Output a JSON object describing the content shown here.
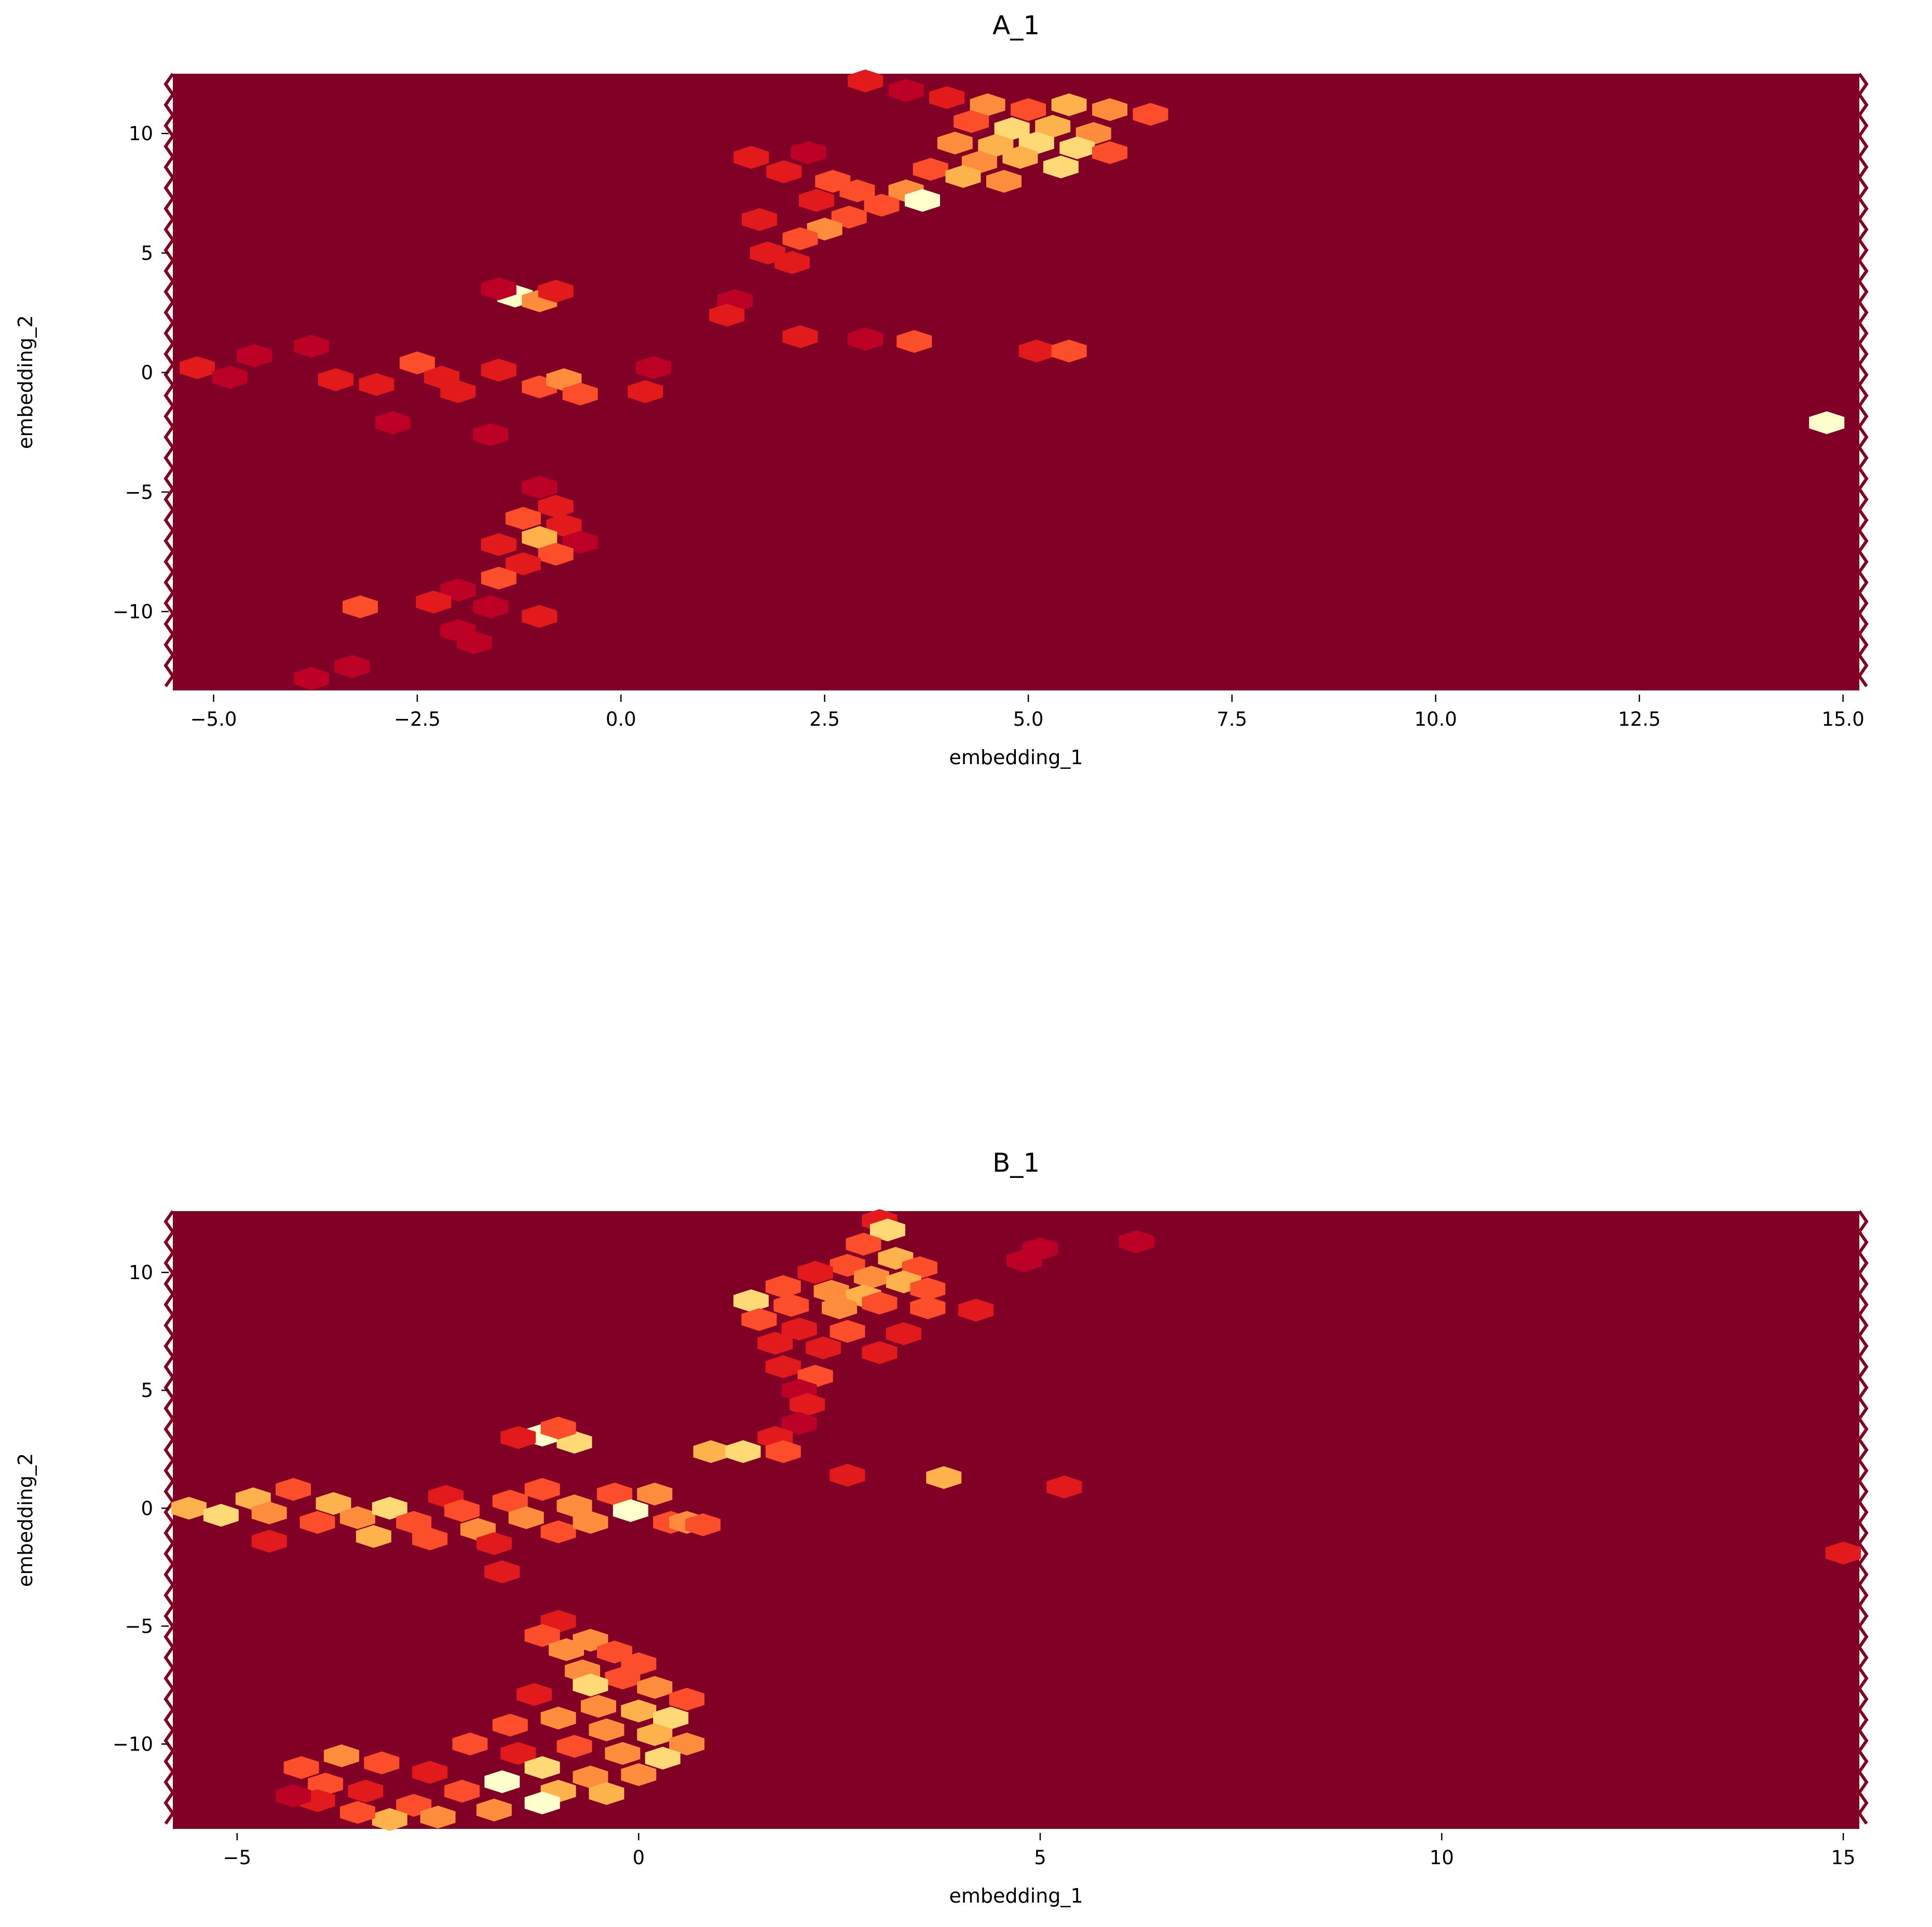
{
  "colors": {
    "background": "#800026",
    "colormap": [
      "#800026",
      "#bd0026",
      "#e31a1c",
      "#fc4e2a",
      "#fd8d3c",
      "#feb24c",
      "#fed976",
      "#ffffcc"
    ]
  },
  "chart_data": [
    {
      "type": "heatmap",
      "subtype": "hexbin",
      "title": "A_1",
      "xlabel": "embedding_1",
      "ylabel": "embedding_2",
      "xlim": [
        -5.5,
        15.2
      ],
      "ylim": [
        -13.3,
        12.5
      ],
      "xticks": [
        -5.0,
        -2.5,
        0.0,
        2.5,
        5.0,
        7.5,
        10.0,
        12.5,
        15.0
      ],
      "xtick_labels": [
        "−5.0",
        "−2.5",
        "0.0",
        "2.5",
        "5.0",
        "7.5",
        "10.0",
        "12.5",
        "15.0"
      ],
      "yticks": [
        10,
        5,
        0,
        -5,
        -10
      ],
      "ytick_labels": [
        "10",
        "5",
        "0",
        "−5",
        "−10"
      ],
      "grid": false,
      "bins": [
        {
          "x": 3.0,
          "y": 12.2,
          "v": 2
        },
        {
          "x": 3.5,
          "y": 11.8,
          "v": 1
        },
        {
          "x": 4.0,
          "y": 11.5,
          "v": 2
        },
        {
          "x": 4.5,
          "y": 11.2,
          "v": 4
        },
        {
          "x": 5.0,
          "y": 11.0,
          "v": 3
        },
        {
          "x": 5.5,
          "y": 11.2,
          "v": 5
        },
        {
          "x": 6.0,
          "y": 11.0,
          "v": 4
        },
        {
          "x": 6.5,
          "y": 10.8,
          "v": 3
        },
        {
          "x": 4.3,
          "y": 10.5,
          "v": 3
        },
        {
          "x": 4.8,
          "y": 10.2,
          "v": 6
        },
        {
          "x": 5.3,
          "y": 10.3,
          "v": 5
        },
        {
          "x": 5.8,
          "y": 10.0,
          "v": 4
        },
        {
          "x": 4.1,
          "y": 9.6,
          "v": 4
        },
        {
          "x": 4.6,
          "y": 9.5,
          "v": 5
        },
        {
          "x": 5.1,
          "y": 9.6,
          "v": 6
        },
        {
          "x": 5.6,
          "y": 9.4,
          "v": 6
        },
        {
          "x": 6.0,
          "y": 9.2,
          "v": 3
        },
        {
          "x": 4.4,
          "y": 8.8,
          "v": 4
        },
        {
          "x": 4.9,
          "y": 9.0,
          "v": 5
        },
        {
          "x": 5.4,
          "y": 8.6,
          "v": 6
        },
        {
          "x": 3.8,
          "y": 8.5,
          "v": 3
        },
        {
          "x": 4.2,
          "y": 8.2,
          "v": 5
        },
        {
          "x": 4.7,
          "y": 8.0,
          "v": 4
        },
        {
          "x": 3.5,
          "y": 7.6,
          "v": 4
        },
        {
          "x": 3.7,
          "y": 7.2,
          "v": 7
        },
        {
          "x": 3.2,
          "y": 7.0,
          "v": 3
        },
        {
          "x": 2.8,
          "y": 6.5,
          "v": 3
        },
        {
          "x": 2.5,
          "y": 6.0,
          "v": 4
        },
        {
          "x": 2.2,
          "y": 5.6,
          "v": 3
        },
        {
          "x": 1.8,
          "y": 5.0,
          "v": 2
        },
        {
          "x": 2.1,
          "y": 4.6,
          "v": 2
        },
        {
          "x": 1.7,
          "y": 6.4,
          "v": 2
        },
        {
          "x": 2.6,
          "y": 8.0,
          "v": 3
        },
        {
          "x": 2.0,
          "y": 8.4,
          "v": 2
        },
        {
          "x": 1.6,
          "y": 9.0,
          "v": 2
        },
        {
          "x": 2.9,
          "y": 7.6,
          "v": 3
        },
        {
          "x": 2.4,
          "y": 7.2,
          "v": 2
        },
        {
          "x": 2.3,
          "y": 9.2,
          "v": 1
        },
        {
          "x": 1.4,
          "y": 3.0,
          "v": 1
        },
        {
          "x": 1.3,
          "y": 2.4,
          "v": 2
        },
        {
          "x": 2.2,
          "y": 1.5,
          "v": 2
        },
        {
          "x": 3.0,
          "y": 1.4,
          "v": 1
        },
        {
          "x": 3.6,
          "y": 1.3,
          "v": 3
        },
        {
          "x": 5.1,
          "y": 0.9,
          "v": 2
        },
        {
          "x": 5.5,
          "y": 0.9,
          "v": 3
        },
        {
          "x": -1.3,
          "y": 3.2,
          "v": 7
        },
        {
          "x": -1.0,
          "y": 3.0,
          "v": 4
        },
        {
          "x": -0.8,
          "y": 3.4,
          "v": 2
        },
        {
          "x": -1.5,
          "y": 3.5,
          "v": 1
        },
        {
          "x": -4.5,
          "y": 0.7,
          "v": 1
        },
        {
          "x": -3.8,
          "y": 1.1,
          "v": 1
        },
        {
          "x": -5.2,
          "y": 0.2,
          "v": 2
        },
        {
          "x": -4.8,
          "y": -0.2,
          "v": 1
        },
        {
          "x": -3.5,
          "y": -0.3,
          "v": 2
        },
        {
          "x": -3.0,
          "y": -0.5,
          "v": 2
        },
        {
          "x": -2.5,
          "y": 0.4,
          "v": 3
        },
        {
          "x": -2.2,
          "y": -0.2,
          "v": 2
        },
        {
          "x": -2.0,
          "y": -0.8,
          "v": 2
        },
        {
          "x": -1.5,
          "y": 0.1,
          "v": 2
        },
        {
          "x": -1.0,
          "y": -0.6,
          "v": 3
        },
        {
          "x": -0.7,
          "y": -0.3,
          "v": 4
        },
        {
          "x": -0.5,
          "y": -0.9,
          "v": 3
        },
        {
          "x": 0.3,
          "y": -0.8,
          "v": 2
        },
        {
          "x": 0.4,
          "y": 0.2,
          "v": 1
        },
        {
          "x": -1.6,
          "y": -2.6,
          "v": 1
        },
        {
          "x": -2.8,
          "y": -2.1,
          "v": 1
        },
        {
          "x": 14.8,
          "y": -2.1,
          "v": 7
        },
        {
          "x": -1.0,
          "y": -4.8,
          "v": 1
        },
        {
          "x": -0.8,
          "y": -5.6,
          "v": 2
        },
        {
          "x": -1.2,
          "y": -6.1,
          "v": 3
        },
        {
          "x": -0.7,
          "y": -6.4,
          "v": 2
        },
        {
          "x": -1.0,
          "y": -6.9,
          "v": 5
        },
        {
          "x": -1.5,
          "y": -7.2,
          "v": 2
        },
        {
          "x": -0.5,
          "y": -7.1,
          "v": 1
        },
        {
          "x": -0.8,
          "y": -7.6,
          "v": 3
        },
        {
          "x": -1.2,
          "y": -8.0,
          "v": 2
        },
        {
          "x": -1.5,
          "y": -8.6,
          "v": 3
        },
        {
          "x": -2.0,
          "y": -9.1,
          "v": 1
        },
        {
          "x": -2.3,
          "y": -9.6,
          "v": 2
        },
        {
          "x": -1.6,
          "y": -9.8,
          "v": 1
        },
        {
          "x": -1.0,
          "y": -10.2,
          "v": 2
        },
        {
          "x": -3.2,
          "y": -9.8,
          "v": 3
        },
        {
          "x": -2.0,
          "y": -10.8,
          "v": 1
        },
        {
          "x": -1.8,
          "y": -11.3,
          "v": 1
        },
        {
          "x": -3.3,
          "y": -12.3,
          "v": 1
        },
        {
          "x": -3.8,
          "y": -12.8,
          "v": 1
        }
      ]
    },
    {
      "type": "heatmap",
      "subtype": "hexbin",
      "title": "B_1",
      "xlabel": "embedding_1",
      "ylabel": "embedding_2",
      "xlim": [
        -5.8,
        15.2
      ],
      "ylim": [
        -13.6,
        12.6
      ],
      "xticks": [
        -5,
        0,
        5,
        10,
        15
      ],
      "xtick_labels": [
        "−5",
        "0",
        "5",
        "10",
        "15"
      ],
      "yticks": [
        10,
        5,
        0,
        -5,
        -10
      ],
      "ytick_labels": [
        "10",
        "5",
        "0",
        "−5",
        "−10"
      ],
      "grid": false,
      "bins": [
        {
          "x": 3.0,
          "y": 12.2,
          "v": 2
        },
        {
          "x": 3.1,
          "y": 11.8,
          "v": 6
        },
        {
          "x": 2.8,
          "y": 11.2,
          "v": 3
        },
        {
          "x": 3.2,
          "y": 10.6,
          "v": 5
        },
        {
          "x": 2.6,
          "y": 10.3,
          "v": 3
        },
        {
          "x": 3.5,
          "y": 10.2,
          "v": 3
        },
        {
          "x": 2.2,
          "y": 10.0,
          "v": 2
        },
        {
          "x": 2.9,
          "y": 9.8,
          "v": 4
        },
        {
          "x": 3.3,
          "y": 9.6,
          "v": 5
        },
        {
          "x": 1.8,
          "y": 9.4,
          "v": 3
        },
        {
          "x": 2.4,
          "y": 9.2,
          "v": 4
        },
        {
          "x": 2.8,
          "y": 9.0,
          "v": 5
        },
        {
          "x": 3.6,
          "y": 9.3,
          "v": 3
        },
        {
          "x": 1.4,
          "y": 8.8,
          "v": 6
        },
        {
          "x": 1.9,
          "y": 8.6,
          "v": 3
        },
        {
          "x": 2.5,
          "y": 8.5,
          "v": 4
        },
        {
          "x": 3.0,
          "y": 8.7,
          "v": 3
        },
        {
          "x": 3.6,
          "y": 8.5,
          "v": 3
        },
        {
          "x": 4.2,
          "y": 8.4,
          "v": 2
        },
        {
          "x": 1.5,
          "y": 8.0,
          "v": 3
        },
        {
          "x": 2.0,
          "y": 7.6,
          "v": 2
        },
        {
          "x": 2.6,
          "y": 7.5,
          "v": 3
        },
        {
          "x": 3.3,
          "y": 7.4,
          "v": 2
        },
        {
          "x": 1.7,
          "y": 7.0,
          "v": 2
        },
        {
          "x": 2.3,
          "y": 6.8,
          "v": 2
        },
        {
          "x": 3.0,
          "y": 6.6,
          "v": 2
        },
        {
          "x": 1.8,
          "y": 6.0,
          "v": 2
        },
        {
          "x": 2.2,
          "y": 5.6,
          "v": 3
        },
        {
          "x": 2.0,
          "y": 5.0,
          "v": 1
        },
        {
          "x": 2.1,
          "y": 4.4,
          "v": 2
        },
        {
          "x": 2.0,
          "y": 3.6,
          "v": 1
        },
        {
          "x": 1.7,
          "y": 3.0,
          "v": 2
        },
        {
          "x": 0.9,
          "y": 2.4,
          "v": 5
        },
        {
          "x": 1.3,
          "y": 2.4,
          "v": 6
        },
        {
          "x": 1.8,
          "y": 2.4,
          "v": 3
        },
        {
          "x": 3.8,
          "y": 1.3,
          "v": 5
        },
        {
          "x": 2.6,
          "y": 1.4,
          "v": 2
        },
        {
          "x": 5.3,
          "y": 0.9,
          "v": 2
        },
        {
          "x": 5.0,
          "y": 11.0,
          "v": 1
        },
        {
          "x": 6.2,
          "y": 11.3,
          "v": 1
        },
        {
          "x": 4.8,
          "y": 10.5,
          "v": 1
        },
        {
          "x": -1.2,
          "y": 3.1,
          "v": 7
        },
        {
          "x": -0.8,
          "y": 2.8,
          "v": 6
        },
        {
          "x": -1.0,
          "y": 3.4,
          "v": 3
        },
        {
          "x": -1.5,
          "y": 3.0,
          "v": 2
        },
        {
          "x": -5.6,
          "y": 0.0,
          "v": 5
        },
        {
          "x": -5.2,
          "y": -0.3,
          "v": 6
        },
        {
          "x": -4.8,
          "y": 0.4,
          "v": 5
        },
        {
          "x": -4.6,
          "y": -0.2,
          "v": 4
        },
        {
          "x": -4.3,
          "y": 0.8,
          "v": 3
        },
        {
          "x": -4.0,
          "y": -0.6,
          "v": 3
        },
        {
          "x": -3.8,
          "y": 0.2,
          "v": 5
        },
        {
          "x": -3.5,
          "y": -0.4,
          "v": 4
        },
        {
          "x": -3.3,
          "y": -1.2,
          "v": 5
        },
        {
          "x": -3.1,
          "y": 0.0,
          "v": 6
        },
        {
          "x": -2.8,
          "y": -0.6,
          "v": 3
        },
        {
          "x": -2.6,
          "y": -1.3,
          "v": 3
        },
        {
          "x": -2.4,
          "y": 0.5,
          "v": 2
        },
        {
          "x": -2.2,
          "y": -0.1,
          "v": 3
        },
        {
          "x": -2.0,
          "y": -0.9,
          "v": 4
        },
        {
          "x": -1.8,
          "y": -1.5,
          "v": 2
        },
        {
          "x": -1.6,
          "y": 0.3,
          "v": 3
        },
        {
          "x": -1.4,
          "y": -0.4,
          "v": 4
        },
        {
          "x": -1.2,
          "y": 0.8,
          "v": 3
        },
        {
          "x": -1.0,
          "y": -1.0,
          "v": 3
        },
        {
          "x": -0.8,
          "y": 0.1,
          "v": 4
        },
        {
          "x": -0.6,
          "y": -0.6,
          "v": 4
        },
        {
          "x": -0.3,
          "y": 0.6,
          "v": 3
        },
        {
          "x": -0.1,
          "y": -0.1,
          "v": 7
        },
        {
          "x": 0.2,
          "y": 0.6,
          "v": 4
        },
        {
          "x": 0.4,
          "y": -0.6,
          "v": 3
        },
        {
          "x": 0.6,
          "y": -0.6,
          "v": 4
        },
        {
          "x": 0.8,
          "y": -0.7,
          "v": 3
        },
        {
          "x": -1.7,
          "y": -2.7,
          "v": 2
        },
        {
          "x": -4.6,
          "y": -1.4,
          "v": 2
        },
        {
          "x": 15.0,
          "y": -1.9,
          "v": 2
        },
        {
          "x": -1.0,
          "y": -4.8,
          "v": 2
        },
        {
          "x": -1.2,
          "y": -5.4,
          "v": 3
        },
        {
          "x": -0.6,
          "y": -5.6,
          "v": 4
        },
        {
          "x": -0.9,
          "y": -6.0,
          "v": 4
        },
        {
          "x": -0.3,
          "y": -6.1,
          "v": 3
        },
        {
          "x": 0.0,
          "y": -6.6,
          "v": 3
        },
        {
          "x": -0.7,
          "y": -6.9,
          "v": 4
        },
        {
          "x": -0.2,
          "y": -7.2,
          "v": 3
        },
        {
          "x": -0.6,
          "y": -7.5,
          "v": 6
        },
        {
          "x": 0.2,
          "y": -7.6,
          "v": 4
        },
        {
          "x": -1.3,
          "y": -7.9,
          "v": 2
        },
        {
          "x": 0.6,
          "y": -8.1,
          "v": 3
        },
        {
          "x": -0.5,
          "y": -8.4,
          "v": 4
        },
        {
          "x": 0.0,
          "y": -8.6,
          "v": 5
        },
        {
          "x": 0.4,
          "y": -8.9,
          "v": 6
        },
        {
          "x": -1.0,
          "y": -8.9,
          "v": 4
        },
        {
          "x": -1.6,
          "y": -9.2,
          "v": 3
        },
        {
          "x": -0.4,
          "y": -9.4,
          "v": 4
        },
        {
          "x": 0.2,
          "y": -9.6,
          "v": 5
        },
        {
          "x": 0.6,
          "y": -10.0,
          "v": 4
        },
        {
          "x": -2.1,
          "y": -10.0,
          "v": 3
        },
        {
          "x": -0.8,
          "y": -10.1,
          "v": 3
        },
        {
          "x": -1.5,
          "y": -10.4,
          "v": 2
        },
        {
          "x": -0.2,
          "y": -10.4,
          "v": 4
        },
        {
          "x": 0.3,
          "y": -10.6,
          "v": 6
        },
        {
          "x": -3.7,
          "y": -10.5,
          "v": 4
        },
        {
          "x": -3.2,
          "y": -10.8,
          "v": 3
        },
        {
          "x": -4.2,
          "y": -11.0,
          "v": 3
        },
        {
          "x": -2.6,
          "y": -11.2,
          "v": 2
        },
        {
          "x": -1.2,
          "y": -11.0,
          "v": 6
        },
        {
          "x": -0.6,
          "y": -11.4,
          "v": 4
        },
        {
          "x": 0.0,
          "y": -11.3,
          "v": 4
        },
        {
          "x": -3.9,
          "y": -11.7,
          "v": 3
        },
        {
          "x": -3.4,
          "y": -12.0,
          "v": 2
        },
        {
          "x": -1.7,
          "y": -11.6,
          "v": 7
        },
        {
          "x": -2.2,
          "y": -12.0,
          "v": 3
        },
        {
          "x": -1.0,
          "y": -12.0,
          "v": 5
        },
        {
          "x": -0.4,
          "y": -12.1,
          "v": 5
        },
        {
          "x": -4.0,
          "y": -12.4,
          "v": 2
        },
        {
          "x": -2.8,
          "y": -12.6,
          "v": 3
        },
        {
          "x": -1.2,
          "y": -12.5,
          "v": 7
        },
        {
          "x": -1.8,
          "y": -12.8,
          "v": 4
        },
        {
          "x": -2.5,
          "y": -13.1,
          "v": 4
        },
        {
          "x": -3.1,
          "y": -13.2,
          "v": 5
        },
        {
          "x": -3.5,
          "y": -12.9,
          "v": 3
        },
        {
          "x": -4.3,
          "y": -12.2,
          "v": 1
        }
      ]
    }
  ]
}
